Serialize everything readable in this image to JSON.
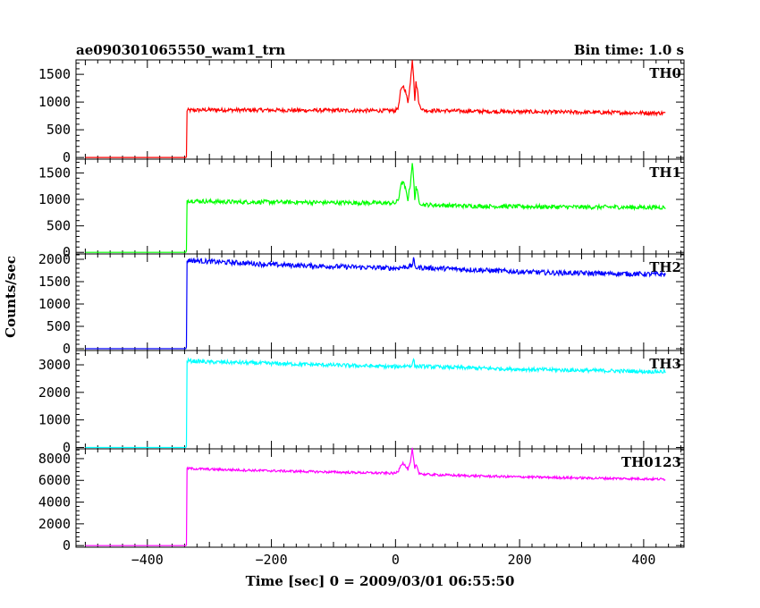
{
  "header": {
    "title": "ae090301065550_wam1_trn",
    "bin_time": "Bin time: 1.0 s"
  },
  "chart_data": {
    "type": "line",
    "xlabel": "Time [sec] 0 = 2009/03/01 06:55:50",
    "ylabel": "Counts/sec",
    "xlim": [
      -515,
      465
    ],
    "xticks": [
      -400,
      -200,
      0,
      200,
      400
    ],
    "xtick_labels": [
      "−400",
      "−200",
      "0",
      "200",
      "400"
    ],
    "grid": false,
    "panels": [
      {
        "name": "TH0",
        "color": "#ff0000",
        "ylim": [
          -30,
          1760
        ],
        "yticks": [
          0,
          500,
          1000,
          1500
        ],
        "points": [
          [
            -500,
            0
          ],
          [
            -337,
            0
          ],
          [
            -337,
            850
          ],
          [
            -300,
            860
          ],
          [
            -250,
            855
          ],
          [
            -200,
            855
          ],
          [
            -150,
            850
          ],
          [
            -100,
            850
          ],
          [
            -50,
            845
          ],
          [
            0,
            845
          ],
          [
            5,
            920
          ],
          [
            8,
            1180
          ],
          [
            12,
            1300
          ],
          [
            16,
            1200
          ],
          [
            20,
            1000
          ],
          [
            24,
            1350
          ],
          [
            27,
            1770
          ],
          [
            29,
            1500
          ],
          [
            31,
            1050
          ],
          [
            33,
            1350
          ],
          [
            35,
            1250
          ],
          [
            38,
            950
          ],
          [
            45,
            850
          ],
          [
            100,
            840
          ],
          [
            150,
            830
          ],
          [
            200,
            825
          ],
          [
            250,
            820
          ],
          [
            300,
            815
          ],
          [
            350,
            810
          ],
          [
            400,
            805
          ],
          [
            435,
            800
          ]
        ],
        "noise": 35
      },
      {
        "name": "TH1",
        "color": "#00ff00",
        "ylim": [
          -30,
          1760
        ],
        "yticks": [
          0,
          500,
          1000,
          1500
        ],
        "points": [
          [
            -500,
            0
          ],
          [
            -337,
            0
          ],
          [
            -337,
            980
          ],
          [
            -300,
            960
          ],
          [
            -250,
            950
          ],
          [
            -200,
            950
          ],
          [
            -150,
            945
          ],
          [
            -100,
            940
          ],
          [
            -50,
            935
          ],
          [
            0,
            930
          ],
          [
            5,
            1000
          ],
          [
            8,
            1250
          ],
          [
            12,
            1330
          ],
          [
            16,
            1200
          ],
          [
            20,
            1000
          ],
          [
            24,
            1300
          ],
          [
            27,
            1700
          ],
          [
            29,
            1400
          ],
          [
            31,
            1000
          ],
          [
            33,
            1250
          ],
          [
            35,
            1150
          ],
          [
            38,
            950
          ],
          [
            45,
            900
          ],
          [
            100,
            880
          ],
          [
            150,
            870
          ],
          [
            200,
            865
          ],
          [
            250,
            860
          ],
          [
            300,
            855
          ],
          [
            350,
            855
          ],
          [
            400,
            850
          ],
          [
            435,
            850
          ]
        ],
        "noise": 40
      },
      {
        "name": "TH2",
        "color": "#0000ff",
        "ylim": [
          -40,
          2120
        ],
        "yticks": [
          0,
          500,
          1000,
          1500,
          2000
        ],
        "points": [
          [
            -500,
            0
          ],
          [
            -337,
            0
          ],
          [
            -337,
            1980
          ],
          [
            -300,
            1950
          ],
          [
            -250,
            1920
          ],
          [
            -200,
            1880
          ],
          [
            -150,
            1860
          ],
          [
            -100,
            1840
          ],
          [
            -50,
            1820
          ],
          [
            0,
            1800
          ],
          [
            27,
            1850
          ],
          [
            29,
            2050
          ],
          [
            31,
            1820
          ],
          [
            100,
            1780
          ],
          [
            150,
            1750
          ],
          [
            200,
            1720
          ],
          [
            250,
            1700
          ],
          [
            300,
            1690
          ],
          [
            350,
            1680
          ],
          [
            400,
            1670
          ],
          [
            435,
            1660
          ]
        ],
        "noise": 55
      },
      {
        "name": "TH3",
        "color": "#00ffff",
        "ylim": [
          -50,
          3520
        ],
        "yticks": [
          0,
          1000,
          2000,
          3000
        ],
        "points": [
          [
            -500,
            0
          ],
          [
            -337,
            0
          ],
          [
            -337,
            3150
          ],
          [
            -300,
            3100
          ],
          [
            -250,
            3080
          ],
          [
            -200,
            3050
          ],
          [
            -150,
            3020
          ],
          [
            -100,
            2990
          ],
          [
            -50,
            2960
          ],
          [
            0,
            2930
          ],
          [
            27,
            2980
          ],
          [
            29,
            3250
          ],
          [
            31,
            2950
          ],
          [
            100,
            2900
          ],
          [
            150,
            2870
          ],
          [
            200,
            2840
          ],
          [
            250,
            2820
          ],
          [
            300,
            2800
          ],
          [
            350,
            2780
          ],
          [
            400,
            2760
          ],
          [
            435,
            2750
          ]
        ],
        "noise": 70
      },
      {
        "name": "TH0123",
        "color": "#ff00ff",
        "ylim": [
          -150,
          8900
        ],
        "yticks": [
          0,
          2000,
          4000,
          6000,
          8000
        ],
        "points": [
          [
            -500,
            0
          ],
          [
            -337,
            0
          ],
          [
            -337,
            7100
          ],
          [
            -300,
            7020
          ],
          [
            -250,
            6950
          ],
          [
            -200,
            6880
          ],
          [
            -150,
            6820
          ],
          [
            -100,
            6760
          ],
          [
            -50,
            6700
          ],
          [
            0,
            6650
          ],
          [
            5,
            6900
          ],
          [
            8,
            7400
          ],
          [
            12,
            7600
          ],
          [
            16,
            7300
          ],
          [
            20,
            7000
          ],
          [
            24,
            7600
          ],
          [
            27,
            8900
          ],
          [
            29,
            8000
          ],
          [
            31,
            7000
          ],
          [
            33,
            7500
          ],
          [
            35,
            7200
          ],
          [
            38,
            6700
          ],
          [
            45,
            6550
          ],
          [
            100,
            6450
          ],
          [
            150,
            6380
          ],
          [
            200,
            6320
          ],
          [
            250,
            6270
          ],
          [
            300,
            6220
          ],
          [
            350,
            6180
          ],
          [
            400,
            6140
          ],
          [
            435,
            6100
          ]
        ],
        "noise": 110
      }
    ]
  }
}
